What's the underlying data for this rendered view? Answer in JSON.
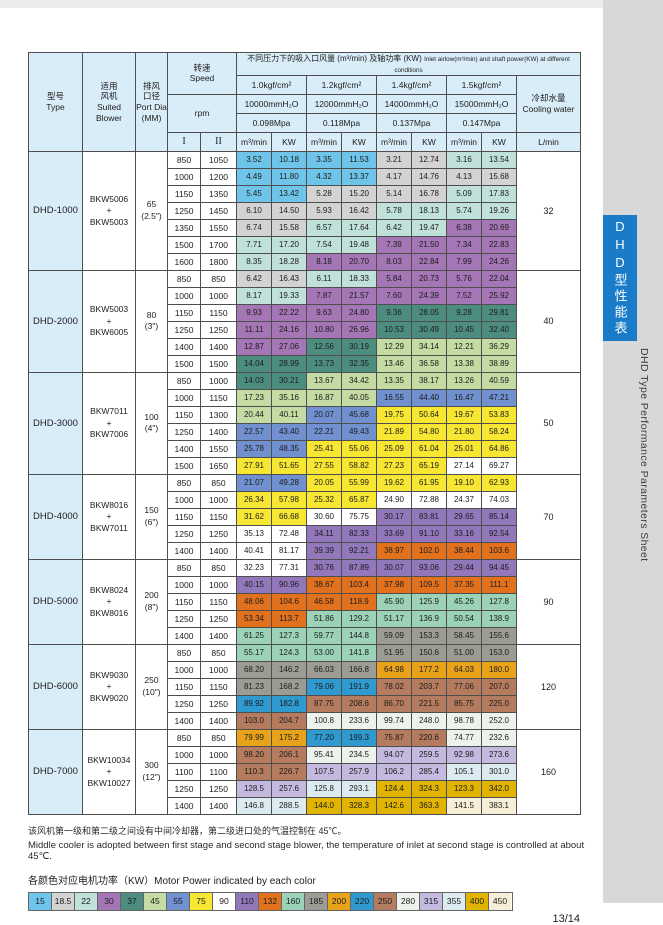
{
  "page": {
    "number": "13/14"
  },
  "sidebar": {
    "tab_cn": "DHD型性能表",
    "tab_en": "DHD Type Performance Parameters Sheet",
    "tab_color": "#1a7cc9"
  },
  "notes": {
    "cn": "该风机第一级和第二级之间设有中间冷却器，第二级进口处的气温控制在 45℃。",
    "en": "Middle cooler is adopted between first stage and second stage blower, the temperature of inlet at second stage is controlled at about 45℃."
  },
  "legend": {
    "title": "各颜色对应电机功率（KW）Motor Power indicated by each color",
    "items": [
      {
        "label": "15",
        "color": "#6fc5e9"
      },
      {
        "label": "18.5",
        "color": "#d3d3d3"
      },
      {
        "label": "22",
        "color": "#c0e0da"
      },
      {
        "label": "30",
        "color": "#a476b5"
      },
      {
        "label": "37",
        "color": "#4d8d80"
      },
      {
        "label": "45",
        "color": "#c5dba4"
      },
      {
        "label": "55",
        "color": "#7090cf"
      },
      {
        "label": "75",
        "color": "#f7e733"
      },
      {
        "label": "90",
        "color": "#ffffff"
      },
      {
        "label": "110",
        "color": "#9377bb"
      },
      {
        "label": "132",
        "color": "#e2711d"
      },
      {
        "label": "160",
        "color": "#9bd2b8"
      },
      {
        "label": "185",
        "color": "#9c9c94"
      },
      {
        "label": "200",
        "color": "#e9a31b"
      },
      {
        "label": "220",
        "color": "#2f9ad0"
      },
      {
        "label": "250",
        "color": "#b57b5e"
      },
      {
        "label": "280",
        "color": "#edf2ed"
      },
      {
        "label": "315",
        "color": "#c4b9de"
      },
      {
        "label": "355",
        "color": "#dceaf2"
      },
      {
        "label": "400",
        "color": "#e0b400"
      },
      {
        "label": "450",
        "color": "#f6eed6"
      }
    ]
  },
  "table": {
    "header": {
      "type": "型号\nType",
      "blower": "适用\n风机\nSuited\nBlower",
      "port": "排风\n口径\nPort Dia\n(MM)",
      "speed": "转速\nSpeed",
      "rpm": "rpm",
      "col1": "I",
      "col2": "II",
      "title_cn": "不同压力下的吸入口风量 (m³/min) 及轴功率 (KW)",
      "title_en": "Inlet airlow(m³/min) and shaft power(KW) at different conditions",
      "conditions": [
        {
          "kgf": "1.0kgf/cm²",
          "mmh2o": "10000mmH₂O",
          "mpa": "0.098Mpa"
        },
        {
          "kgf": "1.2kgf/cm²",
          "mmh2o": "12000mmH₂O",
          "mpa": "0.118Mpa"
        },
        {
          "kgf": "1.4kgf/cm²",
          "mmh2o": "14000mmH₂O",
          "mpa": "0.137Mpa"
        },
        {
          "kgf": "1.5kgf/cm²",
          "mmh2o": "15000mmH₂O",
          "mpa": "0.147Mpa"
        }
      ],
      "flow_unit": "m³/min",
      "power_unit": "KW",
      "cooling": "冷却水量\nCooling water",
      "cooling_unit": "L/min"
    },
    "groups": [
      {
        "model": "DHD-1000",
        "blower": "BKW5006\n+\nBKW5003",
        "port": "65\n(2.5\")",
        "cooling": "32",
        "rows": [
          {
            "s1": "850",
            "s2": "1050",
            "v": [
              "3.52",
              "10.18",
              "3.35",
              "11.53",
              "3.21",
              "12.74",
              "3.16",
              "13.54"
            ],
            "m": [
              "15",
              "15",
              "18.5",
              "22"
            ]
          },
          {
            "s1": "1000",
            "s2": "1200",
            "v": [
              "4.49",
              "11.80",
              "4.32",
              "13.37",
              "4.17",
              "14.76",
              "4.13",
              "15.68"
            ],
            "m": [
              "15",
              "15",
              "18.5",
              "18.5"
            ]
          },
          {
            "s1": "1150",
            "s2": "1350",
            "v": [
              "5.45",
              "13.42",
              "5.28",
              "15.20",
              "5.14",
              "16.78",
              "5.09",
              "17.83"
            ],
            "m": [
              "15",
              "18.5",
              "18.5",
              "22"
            ]
          },
          {
            "s1": "1250",
            "s2": "1450",
            "v": [
              "6.10",
              "14.50",
              "5.93",
              "16.42",
              "5.78",
              "18.13",
              "5.74",
              "19.26"
            ],
            "m": [
              "18.5",
              "18.5",
              "22",
              "22"
            ]
          },
          {
            "s1": "1350",
            "s2": "1550",
            "v": [
              "6.74",
              "15.58",
              "6.57",
              "17.64",
              "6.42",
              "19.47",
              "6.38",
              "20.69"
            ],
            "m": [
              "18.5",
              "22",
              "22",
              "30"
            ]
          },
          {
            "s1": "1500",
            "s2": "1700",
            "v": [
              "7.71",
              "17.20",
              "7.54",
              "19.48",
              "7.39",
              "21.50",
              "7.34",
              "22.83"
            ],
            "m": [
              "22",
              "22",
              "30",
              "30"
            ]
          },
          {
            "s1": "1600",
            "s2": "1800",
            "v": [
              "8.35",
              "18.28",
              "8.18",
              "20.70",
              "8.03",
              "22.84",
              "7.99",
              "24.26"
            ],
            "m": [
              "22",
              "30",
              "30",
              "30"
            ]
          }
        ]
      },
      {
        "model": "DHD-2000",
        "blower": "BKW5003\n+\nBKW6005",
        "port": "80\n(3\")",
        "cooling": "40",
        "rows": [
          {
            "s1": "850",
            "s2": "850",
            "v": [
              "6.42",
              "16.43",
              "6.11",
              "18.33",
              "5.84",
              "20.73",
              "5.76",
              "22.04"
            ],
            "m": [
              "18.5",
              "22",
              "30",
              "30"
            ]
          },
          {
            "s1": "1000",
            "s2": "1000",
            "v": [
              "8.17",
              "19.33",
              "7.87",
              "21.57",
              "7.60",
              "24.39",
              "7.52",
              "25.92"
            ],
            "m": [
              "22",
              "30",
              "30",
              "30"
            ]
          },
          {
            "s1": "1150",
            "s2": "1150",
            "v": [
              "9.93",
              "22.22",
              "9.63",
              "24.80",
              "9.36",
              "28.05",
              "9.28",
              "29.81"
            ],
            "m": [
              "30",
              "30",
              "37",
              "37"
            ]
          },
          {
            "s1": "1250",
            "s2": "1250",
            "v": [
              "11.11",
              "24.16",
              "10.80",
              "26.96",
              "10.53",
              "30.49",
              "10.45",
              "32.40"
            ],
            "m": [
              "30",
              "30",
              "37",
              "37"
            ]
          },
          {
            "s1": "1400",
            "s2": "1400",
            "v": [
              "12.87",
              "27.06",
              "12.56",
              "30.19",
              "12.29",
              "34.14",
              "12.21",
              "36.29"
            ],
            "m": [
              "30",
              "37",
              "45",
              "45"
            ]
          },
          {
            "s1": "1500",
            "s2": "1500",
            "v": [
              "14.04",
              "28.99",
              "13.73",
              "32.35",
              "13.46",
              "36.58",
              "13.38",
              "38.89"
            ],
            "m": [
              "37",
              "37",
              "45",
              "45"
            ]
          }
        ]
      },
      {
        "model": "DHD-3000",
        "blower": "BKW7011\n+\nBKW7006",
        "port": "100\n(4\")",
        "cooling": "50",
        "rows": [
          {
            "s1": "850",
            "s2": "1000",
            "v": [
              "14.03",
              "30.21",
              "13.67",
              "34.42",
              "13.35",
              "38.17",
              "13.26",
              "40.59"
            ],
            "m": [
              "37",
              "45",
              "45",
              "45"
            ]
          },
          {
            "s1": "1000",
            "s2": "1150",
            "v": [
              "17.23",
              "35.16",
              "16.87",
              "40.05",
              "16.55",
              "44.40",
              "16.47",
              "47.21"
            ],
            "m": [
              "45",
              "45",
              "55",
              "55"
            ]
          },
          {
            "s1": "1150",
            "s2": "1300",
            "v": [
              "20.44",
              "40.11",
              "20.07",
              "45.68",
              "19.75",
              "50.64",
              "19.67",
              "53.83"
            ],
            "m": [
              "45",
              "55",
              "75",
              "75"
            ]
          },
          {
            "s1": "1250",
            "s2": "1400",
            "v": [
              "22.57",
              "43.40",
              "22.21",
              "49.43",
              "21.89",
              "54.80",
              "21.80",
              "58.24"
            ],
            "m": [
              "55",
              "55",
              "75",
              "75"
            ]
          },
          {
            "s1": "1400",
            "s2": "1550",
            "v": [
              "25.78",
              "48.35",
              "25.41",
              "55.06",
              "25.09",
              "61.04",
              "25.01",
              "64.86"
            ],
            "m": [
              "55",
              "75",
              "75",
              "75"
            ]
          },
          {
            "s1": "1500",
            "s2": "1650",
            "v": [
              "27.91",
              "51.65",
              "27.55",
              "58.82",
              "27.23",
              "65.19",
              "27.14",
              "69.27"
            ],
            "m": [
              "75",
              "75",
              "75",
              "90"
            ]
          }
        ]
      },
      {
        "model": "DHD-4000",
        "blower": "BKW8016\n+\nBKW7011",
        "port": "150\n(6\")",
        "cooling": "70",
        "rows": [
          {
            "s1": "850",
            "s2": "850",
            "v": [
              "21.07",
              "49.28",
              "20.05",
              "55.99",
              "19.62",
              "61.95",
              "19.10",
              "62.93"
            ],
            "m": [
              "55",
              "75",
              "75",
              "75"
            ]
          },
          {
            "s1": "1000",
            "s2": "1000",
            "v": [
              "26.34",
              "57.98",
              "25.32",
              "65.87",
              "24.90",
              "72.88",
              "24.37",
              "74.03"
            ],
            "m": [
              "75",
              "75",
              "90",
              "90"
            ]
          },
          {
            "s1": "1150",
            "s2": "1150",
            "v": [
              "31.62",
              "66.68",
              "30.60",
              "75.75",
              "30.17",
              "83.81",
              "29.65",
              "85.14"
            ],
            "m": [
              "75",
              "90",
              "110",
              "110"
            ]
          },
          {
            "s1": "1250",
            "s2": "1250",
            "v": [
              "35.13",
              "72.48",
              "34.11",
              "82.33",
              "33.69",
              "91.10",
              "33.16",
              "92.54"
            ],
            "m": [
              "90",
              "110",
              "110",
              "110"
            ]
          },
          {
            "s1": "1400",
            "s2": "1400",
            "v": [
              "40.41",
              "81.17",
              "39.39",
              "92.21",
              "38.97",
              "102.0",
              "38.44",
              "103.6"
            ],
            "m": [
              "90",
              "110",
              "132",
              "132"
            ]
          }
        ]
      },
      {
        "model": "DHD-5000",
        "blower": "BKW8024\n+\nBKW8016",
        "port": "200\n(8\")",
        "cooling": "90",
        "rows": [
          {
            "s1": "850",
            "s2": "850",
            "v": [
              "32.23",
              "77.31",
              "30.76",
              "87.89",
              "30.07",
              "93.06",
              "29.44",
              "94.45"
            ],
            "m": [
              "90",
              "110",
              "110",
              "110"
            ]
          },
          {
            "s1": "1000",
            "s2": "1000",
            "v": [
              "40.15",
              "90.96",
              "38.67",
              "103.4",
              "37.98",
              "109.5",
              "37.35",
              "111.1"
            ],
            "m": [
              "110",
              "132",
              "132",
              "132"
            ]
          },
          {
            "s1": "1150",
            "s2": "1150",
            "v": [
              "48.06",
              "104.6",
              "46.58",
              "118.9",
              "45.90",
              "125.9",
              "45.26",
              "127.8"
            ],
            "m": [
              "132",
              "132",
              "160",
              "160"
            ]
          },
          {
            "s1": "1250",
            "s2": "1250",
            "v": [
              "53.34",
              "113.7",
              "51.86",
              "129.2",
              "51.17",
              "136.9",
              "50.54",
              "138.9"
            ],
            "m": [
              "132",
              "160",
              "160",
              "160"
            ]
          },
          {
            "s1": "1400",
            "s2": "1400",
            "v": [
              "61.25",
              "127.3",
              "59.77",
              "144.8",
              "59.09",
              "153.3",
              "58.45",
              "155.6"
            ],
            "m": [
              "160",
              "160",
              "185",
              "185"
            ]
          }
        ]
      },
      {
        "model": "DHD-6000",
        "blower": "BKW9030\n+\nBKW9020",
        "port": "250\n(10\")",
        "cooling": "120",
        "rows": [
          {
            "s1": "850",
            "s2": "850",
            "v": [
              "55.17",
              "124.3",
              "53.00",
              "141.8",
              "51.95",
              "150.6",
              "51.00",
              "153.0"
            ],
            "m": [
              "160",
              "160",
              "185",
              "185"
            ]
          },
          {
            "s1": "1000",
            "s2": "1000",
            "v": [
              "68.20",
              "146.2",
              "66.03",
              "166.8",
              "64.98",
              "177.2",
              "64.03",
              "180.0"
            ],
            "m": [
              "185",
              "185",
              "200",
              "200"
            ]
          },
          {
            "s1": "1150",
            "s2": "1150",
            "v": [
              "81.23",
              "168.2",
              "79.06",
              "191.9",
              "78.02",
              "203.7",
              "77.06",
              "207.0"
            ],
            "m": [
              "185",
              "220",
              "250",
              "250"
            ]
          },
          {
            "s1": "1250",
            "s2": "1250",
            "v": [
              "89.92",
              "182.8",
              "87.75",
              "208.6",
              "86.70",
              "221.5",
              "85.75",
              "225.0"
            ],
            "m": [
              "220",
              "250",
              "250",
              "250"
            ]
          },
          {
            "s1": "1400",
            "s2": "1400",
            "v": [
              "103.0",
              "204.7",
              "100.8",
              "233.6",
              "99.74",
              "248.0",
              "98.78",
              "252.0"
            ],
            "m": [
              "250",
              "280",
              "280",
              "280"
            ]
          }
        ]
      },
      {
        "model": "DHD-7000",
        "blower": "BKW10034\n+\nBKW10027",
        "port": "300\n(12\")",
        "cooling": "160",
        "rows": [
          {
            "s1": "850",
            "s2": "850",
            "v": [
              "79.99",
              "175.2",
              "77.20",
              "199.3",
              "75.87",
              "220.6",
              "74.77",
              "232.6"
            ],
            "m": [
              "200",
              "220",
              "250",
              "280"
            ]
          },
          {
            "s1": "1000",
            "s2": "1000",
            "v": [
              "98.20",
              "206.1",
              "95.41",
              "234.5",
              "94.07",
              "259.5",
              "92.98",
              "273.6"
            ],
            "m": [
              "250",
              "280",
              "315",
              "315"
            ]
          },
          {
            "s1": "1100",
            "s2": "1100",
            "v": [
              "110.3",
              "226.7",
              "107.5",
              "257.9",
              "106.2",
              "285.4",
              "105.1",
              "301.0"
            ],
            "m": [
              "250",
              "315",
              "315",
              "355"
            ]
          },
          {
            "s1": "1250",
            "s2": "1250",
            "v": [
              "128.5",
              "257.6",
              "125.8",
              "293.1",
              "124.4",
              "324.3",
              "123.3",
              "342.0"
            ],
            "m": [
              "315",
              "355",
              "400",
              "400"
            ]
          },
          {
            "s1": "1400",
            "s2": "1400",
            "v": [
              "146.8",
              "288.5",
              "144.0",
              "328.3",
              "142.6",
              "363.3",
              "141.5",
              "383.1"
            ],
            "m": [
              "355",
              "400",
              "400",
              "450"
            ]
          }
        ]
      }
    ]
  }
}
